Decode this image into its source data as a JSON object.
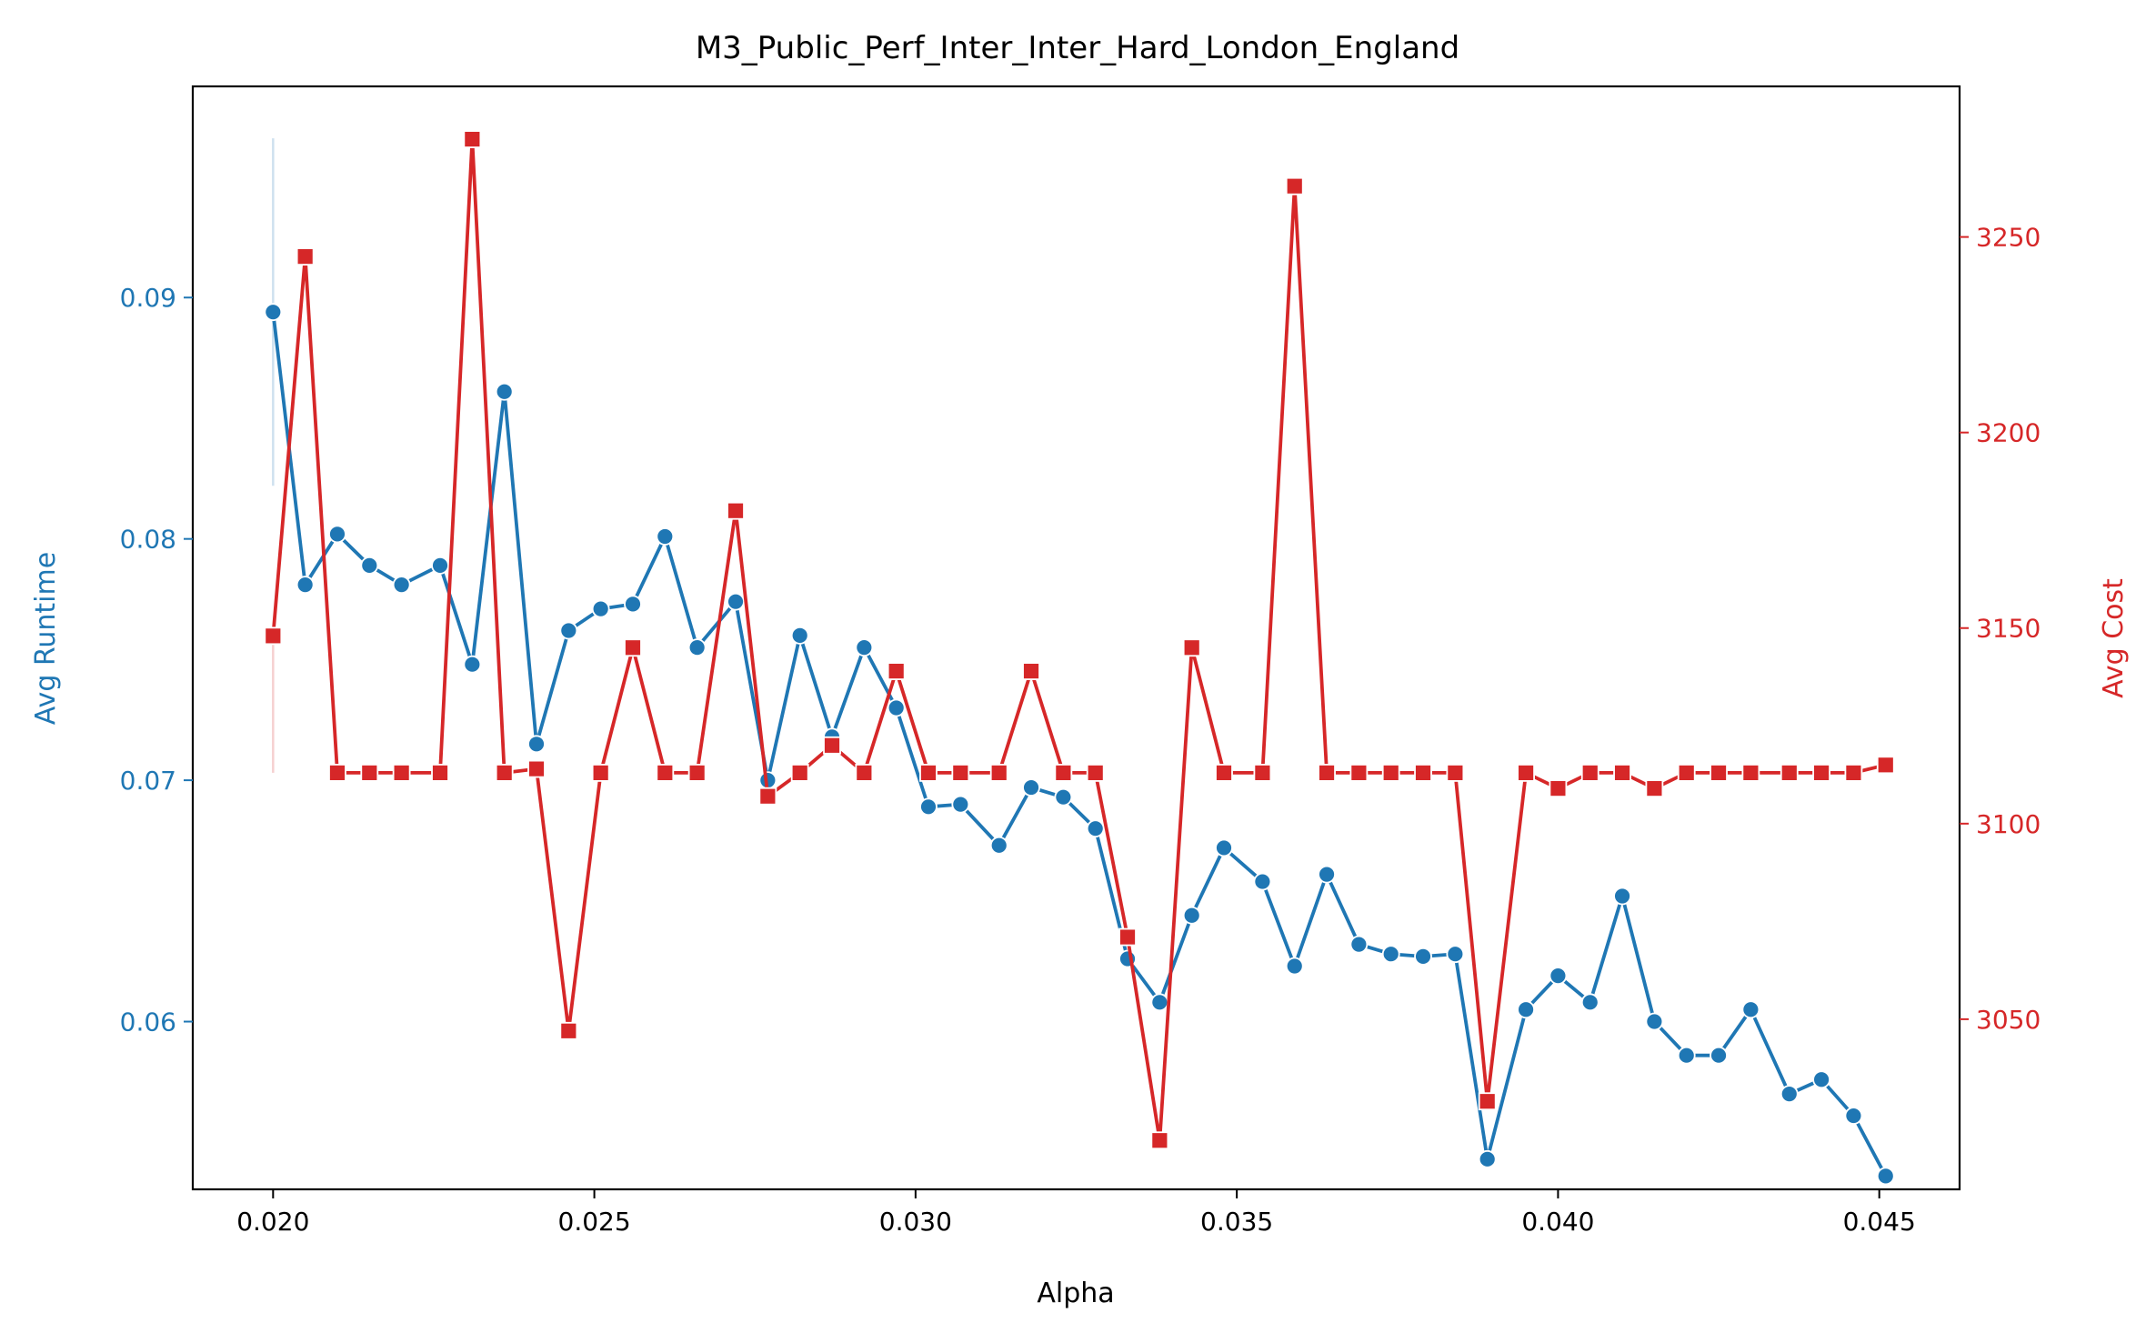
{
  "chart_data": {
    "type": "line",
    "title": "M3_Public_Perf_Inter_Inter_Hard_London_England",
    "xlabel": "Alpha",
    "ylabel_left": "Avg Runtime",
    "ylabel_right": "Avg Cost",
    "xlim": [
      0.01875,
      0.04625
    ],
    "ylim_left": [
      0.05305,
      0.09875
    ],
    "ylim_right": [
      3006.5,
      3288.5
    ],
    "x_ticks": [
      "0.020",
      "0.025",
      "0.030",
      "0.035",
      "0.040",
      "0.045"
    ],
    "y_left_ticks": [
      "0.06",
      "0.07",
      "0.08",
      "0.09"
    ],
    "y_right_ticks": [
      "3050",
      "3100",
      "3150",
      "3200",
      "3250"
    ],
    "grid": false,
    "colors": {
      "runtime": "#1f77b4",
      "cost": "#d62728"
    },
    "x": [
      0.02,
      0.0205,
      0.021,
      0.0215,
      0.022,
      0.0226,
      0.0231,
      0.0236,
      0.0241,
      0.0246,
      0.0251,
      0.0256,
      0.0261,
      0.0266,
      0.0272,
      0.0277,
      0.0282,
      0.0287,
      0.0292,
      0.0297,
      0.0302,
      0.0307,
      0.0313,
      0.0318,
      0.0323,
      0.0328,
      0.0333,
      0.0338,
      0.0343,
      0.0348,
      0.0354,
      0.0359,
      0.0364,
      0.0369,
      0.0374,
      0.0379,
      0.0384,
      0.0389,
      0.0395,
      0.04,
      0.0405,
      0.041,
      0.0415,
      0.042,
      0.0425,
      0.043,
      0.0436,
      0.0441,
      0.0446,
      0.0451
    ],
    "series": [
      {
        "name": "Avg Runtime",
        "axis": "left",
        "marker": "circle",
        "values": [
          0.0894,
          0.0781,
          0.0802,
          0.0789,
          0.0781,
          0.0789,
          0.0748,
          0.0861,
          0.0715,
          0.0762,
          0.0771,
          0.0773,
          0.0801,
          0.0755,
          0.0774,
          0.07,
          0.076,
          0.0718,
          0.0755,
          0.073,
          0.0689,
          0.069,
          0.0673,
          0.0697,
          0.0693,
          0.068,
          0.0626,
          0.0608,
          0.0644,
          0.0672,
          0.0658,
          0.0623,
          0.0661,
          0.0632,
          0.0628,
          0.0627,
          0.0628,
          0.0543,
          0.0605,
          0.0619,
          0.0608,
          0.0652,
          0.06,
          0.0586,
          0.0586,
          0.0605,
          0.057,
          0.0576,
          0.0561,
          0.0536
        ],
        "ci_first_point": [
          0.0822,
          0.0966
        ]
      },
      {
        "name": "Avg Cost",
        "axis": "right",
        "marker": "square",
        "values": [
          3148,
          3245,
          3113,
          3113,
          3113,
          3113,
          3275,
          3113,
          3114,
          3047,
          3113,
          3145,
          3113,
          3113,
          3180,
          3107,
          3113,
          3120,
          3113,
          3139,
          3113,
          3113,
          3113,
          3139,
          3113,
          3113,
          3071,
          3019,
          3145,
          3113,
          3113,
          3263,
          3113,
          3113,
          3113,
          3113,
          3113,
          3029,
          3113,
          3109,
          3113,
          3113,
          3109,
          3113,
          3113,
          3113,
          3113,
          3113,
          3113,
          3115
        ],
        "ci_first_point": [
          3113,
          3148
        ]
      }
    ]
  }
}
